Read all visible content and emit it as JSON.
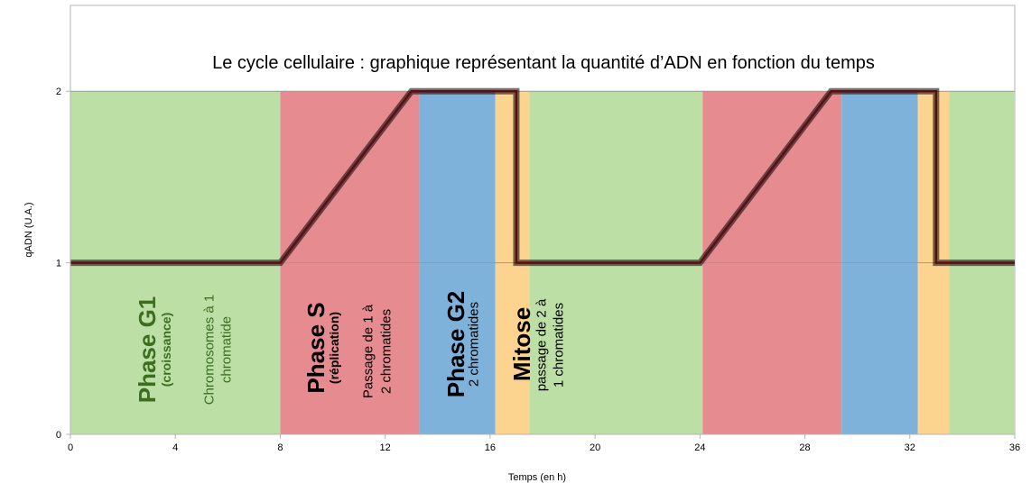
{
  "chart_data": {
    "type": "line",
    "title": "Le cycle cellulaire : graphique représentant la quantité d’ADN en fonction du temps",
    "xlabel": "Temps (en h)",
    "ylabel": "qADN (U.A.)",
    "xlim": [
      0,
      36
    ],
    "ylim": [
      0,
      2.5
    ],
    "x_ticks": [
      0,
      4,
      8,
      12,
      16,
      20,
      24,
      28,
      32,
      36
    ],
    "y_ticks": [
      0,
      1,
      2
    ],
    "grid": false,
    "series": [
      {
        "color": "#000000",
        "x": [
          0,
          8,
          13,
          17,
          17,
          24,
          29,
          33,
          33,
          36
        ],
        "y": [
          1,
          1,
          2,
          2,
          1,
          1,
          2,
          2,
          1,
          1
        ]
      }
    ],
    "phase_bands": [
      {
        "start": 0,
        "end": 8,
        "color": "#bcdfa6"
      },
      {
        "start": 8,
        "end": 13.3,
        "color": "#e68c90"
      },
      {
        "start": 13.3,
        "end": 16.2,
        "color": "#7fb2da"
      },
      {
        "start": 16.2,
        "end": 17.5,
        "color": "#fdd48f"
      },
      {
        "start": 17.5,
        "end": 24.1,
        "color": "#bcdfa6"
      },
      {
        "start": 24.1,
        "end": 29.4,
        "color": "#e68c90"
      },
      {
        "start": 29.4,
        "end": 32.3,
        "color": "#7fb2da"
      },
      {
        "start": 32.3,
        "end": 33.5,
        "color": "#fdd48f"
      },
      {
        "start": 33.5,
        "end": 36,
        "color": "#bcdfa6"
      }
    ],
    "band_top_y": 2,
    "annotations": [
      {
        "id": "g1-title",
        "text": "Phase G1",
        "color": "#3d6e20"
      },
      {
        "id": "g1-sub",
        "text": "(croissance)",
        "color": "#3d6e20"
      },
      {
        "id": "g1-desc-1",
        "text": "Chromosomes à 1",
        "color": "#3d6e20"
      },
      {
        "id": "g1-desc-2",
        "text": "chromatide",
        "color": "#3d6e20"
      },
      {
        "id": "s-title",
        "text": "Phase S",
        "color": "#000000"
      },
      {
        "id": "s-sub",
        "text": "(réplication)",
        "color": "#000000"
      },
      {
        "id": "s-desc-1",
        "text": "Passage de 1 à",
        "color": "#000000"
      },
      {
        "id": "s-desc-2",
        "text": "2 chromatides",
        "color": "#000000"
      },
      {
        "id": "g2-title",
        "text": "Phase G2",
        "color": "#000000"
      },
      {
        "id": "g2-desc",
        "text": "2 chromatides",
        "color": "#000000"
      },
      {
        "id": "m-title",
        "text": "Mitose",
        "color": "#000000"
      },
      {
        "id": "m-desc-1",
        "text": "passage de 2 à",
        "color": "#000000"
      },
      {
        "id": "m-desc-2",
        "text": "1 chromatides",
        "color": "#000000"
      }
    ]
  }
}
